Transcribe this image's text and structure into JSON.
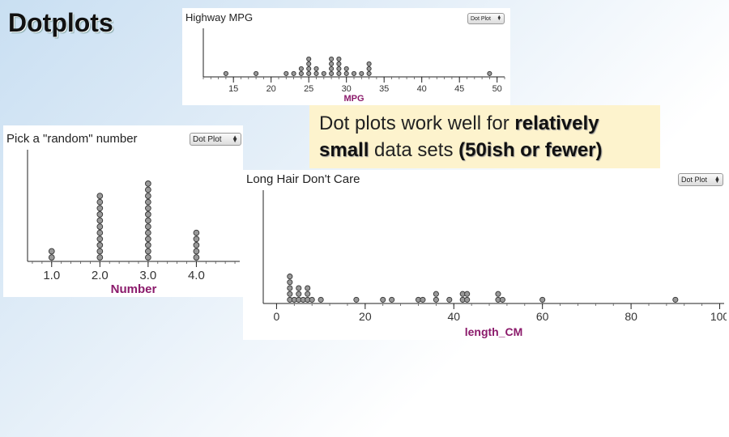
{
  "slide": {
    "title": "Dotplots",
    "callout": {
      "part1": "Dot plots work well for ",
      "bold1": "relatively small",
      "part2": " data sets ",
      "bold2": "(50ish or fewer)"
    }
  },
  "colors": {
    "axis_label": "#8b1a6b",
    "dot_fill": "#999999",
    "dot_stroke": "#333333",
    "callout_bg": "#fdf3cd"
  },
  "chart_data": [
    {
      "id": "mpg",
      "type": "scatter",
      "subtype": "dotplot",
      "title": "Highway MPG",
      "control": "Dot Plot",
      "xlabel": "MPG",
      "xlim": [
        11,
        51
      ],
      "ticks": [
        15,
        20,
        25,
        30,
        35,
        40,
        45,
        50
      ],
      "tick_labels": [
        "15",
        "20",
        "25",
        "30",
        "35",
        "40",
        "45",
        "50"
      ],
      "values": [
        14,
        18,
        22,
        23,
        24,
        24,
        25,
        25,
        25,
        25,
        26,
        26,
        27,
        28,
        28,
        28,
        28,
        29,
        29,
        29,
        29,
        30,
        30,
        31,
        32,
        33,
        33,
        33,
        49
      ]
    },
    {
      "id": "random",
      "type": "scatter",
      "subtype": "dotplot",
      "title": "Pick a \"random\" number",
      "control": "Dot Plot",
      "xlabel": "Number",
      "xlim": [
        0.5,
        4.9
      ],
      "ticks": [
        1.0,
        2.0,
        3.0,
        4.0
      ],
      "tick_labels": [
        "1.0",
        "2.0",
        "3.0",
        "4.0"
      ],
      "values": [
        1,
        1,
        2,
        2,
        2,
        2,
        2,
        2,
        2,
        2,
        2,
        2,
        2,
        3,
        3,
        3,
        3,
        3,
        3,
        3,
        3,
        3,
        3,
        3,
        3,
        3,
        4,
        4,
        4,
        4,
        4
      ]
    },
    {
      "id": "hair",
      "type": "scatter",
      "subtype": "dotplot",
      "title": "Long Hair Don't Care",
      "control": "Dot Plot",
      "xlabel": "length_CM",
      "xlim": [
        -3,
        101
      ],
      "ticks": [
        0,
        20,
        40,
        60,
        80,
        100
      ],
      "tick_labels": [
        "0",
        "20",
        "40",
        "60",
        "80",
        "100"
      ],
      "values": [
        3,
        3,
        3,
        3,
        3,
        4,
        5,
        5,
        5,
        6,
        7,
        7,
        7,
        8,
        10,
        18,
        24,
        26,
        32,
        33,
        36,
        36,
        39,
        42,
        42,
        43,
        43,
        50,
        50,
        51,
        60,
        90
      ]
    }
  ]
}
